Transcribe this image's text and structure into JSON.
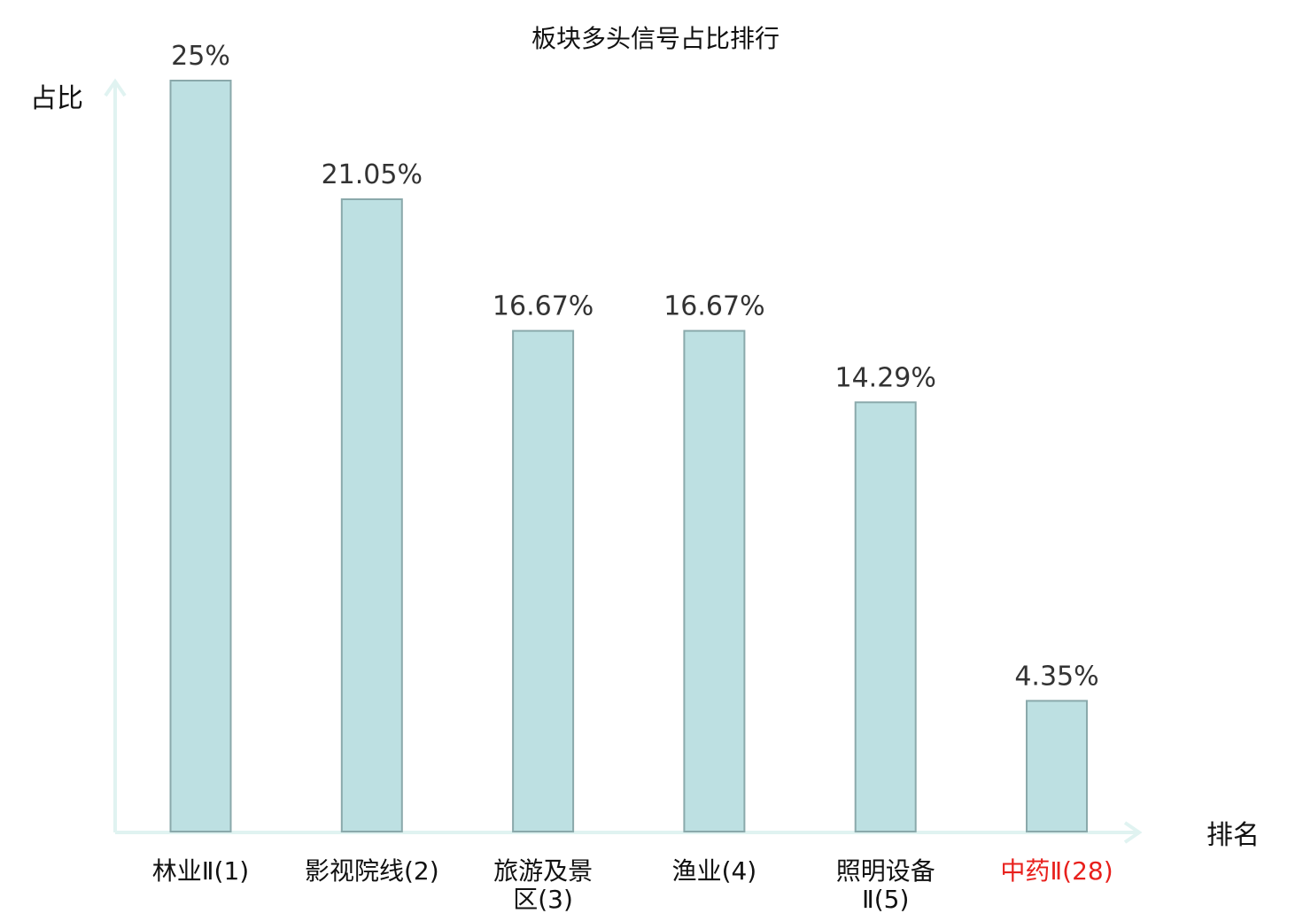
{
  "chart_data": {
    "type": "bar",
    "title": "板块多头信号占比排行",
    "ylabel": "占比",
    "xlabel": "排名",
    "ylim": [
      0,
      25
    ],
    "grid": false,
    "categories": [
      [
        "林业Ⅱ(1)"
      ],
      [
        "影视院线(2)"
      ],
      [
        "旅游及景",
        "区(3)"
      ],
      [
        "渔业(4)"
      ],
      [
        "照明设备",
        "Ⅱ(5)"
      ],
      [
        "中药Ⅱ(28)"
      ]
    ],
    "values": [
      25,
      21.05,
      16.67,
      16.67,
      14.29,
      4.35
    ],
    "value_labels": [
      "25%",
      "21.05%",
      "16.67%",
      "16.67%",
      "14.29%",
      "4.35%"
    ],
    "highlight_index": 5,
    "colors": {
      "bar_fill": "#bde0e2",
      "bar_stroke": "#8aa9ab",
      "axis": "#e0f3f1",
      "category_text": "#111111",
      "highlight_text": "#e8201c",
      "value_text": "#333333"
    }
  }
}
